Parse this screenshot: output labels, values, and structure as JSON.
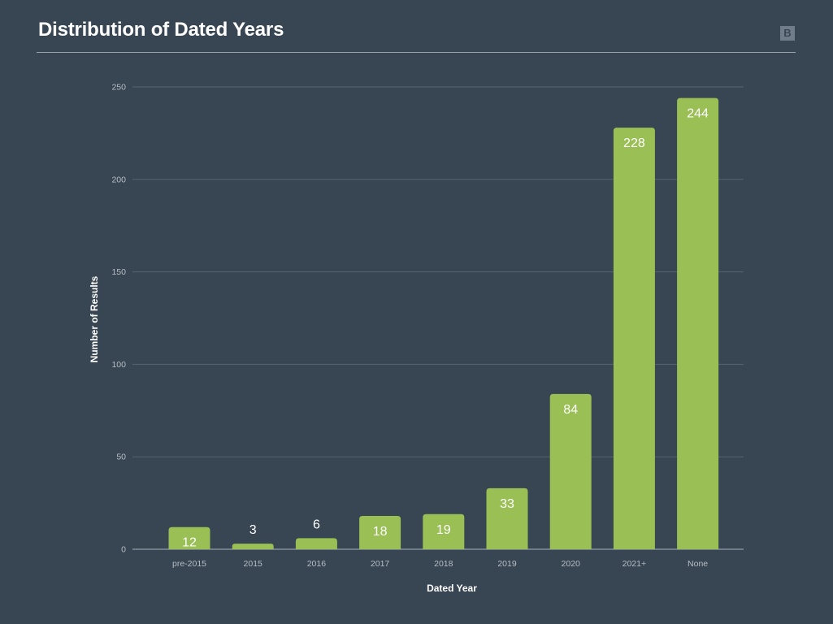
{
  "page": {
    "title": "Distribution of Dated Years",
    "logo_text": "B"
  },
  "colors": {
    "background": "#384552",
    "bar": "#99bf55",
    "grid": "#566472",
    "text": "#ffffff"
  },
  "chart_data": {
    "type": "bar",
    "title": "Distribution of Dated Years",
    "xlabel": "Dated Year",
    "ylabel": "Number of Results",
    "categories": [
      "pre-2015",
      "2015",
      "2016",
      "2017",
      "2018",
      "2019",
      "2020",
      "2021+",
      "None"
    ],
    "values": [
      12,
      3,
      6,
      18,
      19,
      33,
      84,
      228,
      244
    ],
    "data_labels": [
      "12",
      "3",
      "6",
      "18",
      "19",
      "33",
      "84",
      "228",
      "244"
    ],
    "ylim": [
      0,
      250
    ],
    "yticks": [
      0,
      50,
      100,
      150,
      200,
      250
    ],
    "grid": true,
    "legend": "none"
  }
}
